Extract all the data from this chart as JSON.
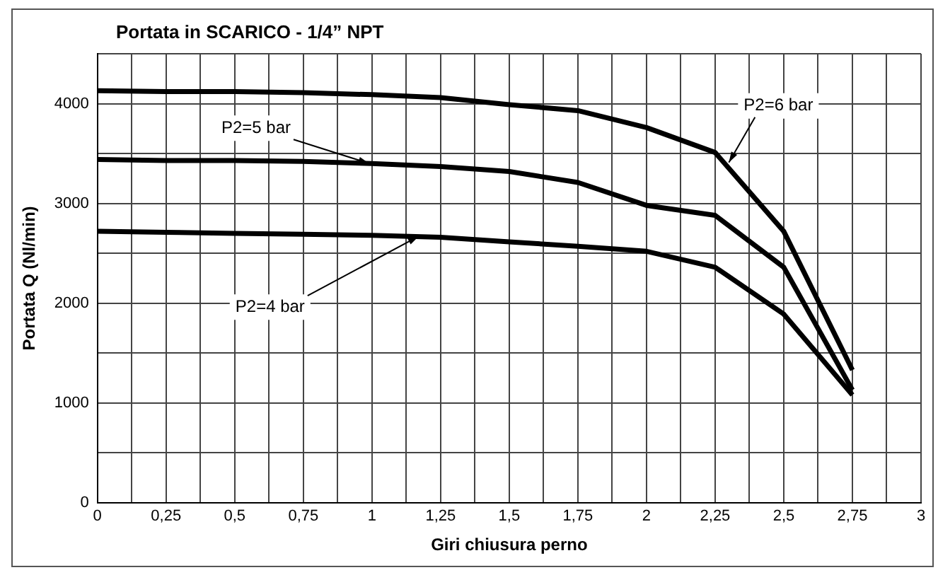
{
  "chart_data": {
    "type": "line",
    "title": "Portata in SCARICO - 1/4” NPT",
    "xlabel": "Giri chiusura perno",
    "ylabel": "Portata Q (Nl/min)",
    "x": [
      0,
      0.25,
      0.5,
      0.75,
      1,
      1.25,
      1.5,
      1.75,
      2,
      2.25,
      2.5,
      2.75
    ],
    "series": [
      {
        "color": "#000000",
        "values": [
          4130,
          4120,
          4120,
          4110,
          4090,
          4060,
          3990,
          3930,
          3760,
          3510,
          2720,
          1330
        ]
      },
      {
        "color": "#000000",
        "values": [
          3440,
          3430,
          3430,
          3420,
          3400,
          3370,
          3320,
          3210,
          2980,
          2880,
          2360,
          1130
        ]
      },
      {
        "color": "#000000",
        "values": [
          2720,
          2710,
          2700,
          2690,
          2680,
          2660,
          2615,
          2570,
          2520,
          2360,
          1890,
          1080
        ]
      }
    ],
    "annotations": [
      {
        "text": "P2=6 bar",
        "x": 2.3,
        "y": 3410
      },
      {
        "text": "P2=5 bar",
        "x": 0.99,
        "y": 3400
      },
      {
        "text": "P2=4 bar",
        "x": 1.17,
        "y": 2670
      }
    ],
    "xlim": [
      0,
      3
    ],
    "ylim": [
      0,
      4500
    ],
    "xticks": [
      0,
      {
        "value": 0.125,
        "label": null
      },
      {
        "value": 0.25,
        "label": "0,25"
      },
      {
        "value": 0.375,
        "label": null
      },
      {
        "value": 0.5,
        "label": "0,5"
      },
      {
        "value": 0.625,
        "label": null
      },
      {
        "value": 0.75,
        "label": "0,75"
      },
      {
        "value": 0.875,
        "label": null
      },
      1,
      {
        "value": 1.125,
        "label": null
      },
      {
        "value": 1.25,
        "label": "1,25"
      },
      {
        "value": 1.375,
        "label": null
      },
      {
        "value": 1.5,
        "label": "1,5"
      },
      {
        "value": 1.625,
        "label": null
      },
      {
        "value": 1.75,
        "label": "1,75"
      },
      {
        "value": 1.875,
        "label": null
      },
      2,
      {
        "value": 2.125,
        "label": null
      },
      {
        "value": 2.25,
        "label": "2,25"
      },
      {
        "value": 2.375,
        "label": null
      },
      {
        "value": 2.5,
        "label": "2,5"
      },
      {
        "value": 2.625,
        "label": null
      },
      {
        "value": 2.75,
        "label": "2,75"
      },
      {
        "value": 2.875,
        "label": null
      },
      3
    ],
    "yticks": [
      0,
      {
        "value": 500,
        "label": null
      },
      1000,
      {
        "value": 1500,
        "label": null
      },
      2000,
      {
        "value": 2500,
        "label": null
      },
      3000,
      {
        "value": 3500,
        "label": null
      },
      4000,
      {
        "value": 4500,
        "label": null
      }
    ],
    "grid": true,
    "legend": false,
    "marker": "none",
    "line_style": "solid"
  }
}
